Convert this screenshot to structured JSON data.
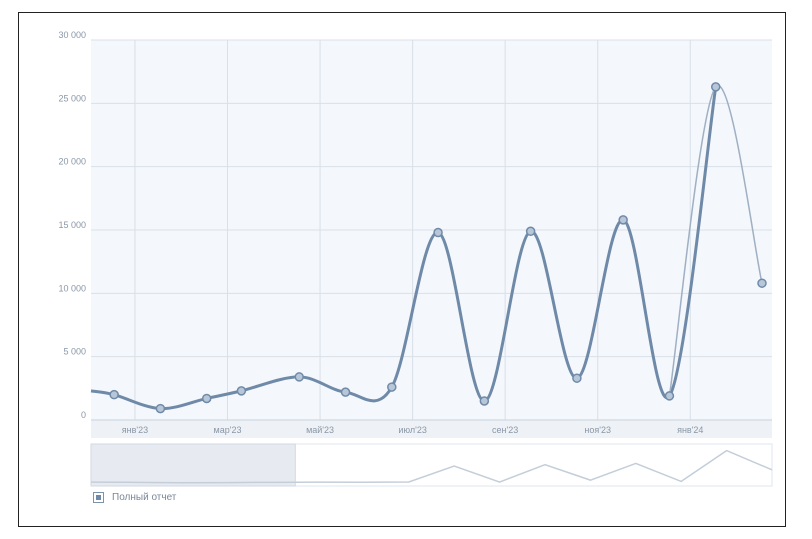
{
  "chart_data": {
    "type": "line",
    "y_ticks": [
      "30 000",
      "25 000",
      "20 000",
      "15 000",
      "10 000",
      "5 000",
      "0"
    ],
    "ylim": [
      0,
      30000
    ],
    "x_tick_labels": [
      "янв'23",
      "мар'23",
      "май'23",
      "июл'23",
      "сен'23",
      "ноя'23",
      "янв'24"
    ],
    "series": [
      {
        "points": [
          [
            0.0,
            2300
          ],
          [
            0.5,
            2000
          ],
          [
            1.5,
            900
          ],
          [
            2.5,
            1700
          ],
          [
            3.25,
            2300
          ],
          [
            4.5,
            3400
          ],
          [
            5.5,
            2200
          ],
          [
            6.5,
            2600
          ],
          [
            7.5,
            14800
          ],
          [
            8.5,
            1500
          ],
          [
            9.5,
            14900
          ],
          [
            10.5,
            3300
          ],
          [
            11.5,
            15800
          ],
          [
            12.5,
            1900
          ],
          [
            13.5,
            26300
          ],
          [
            14.5,
            10800
          ]
        ],
        "color": "#6f8aa8"
      }
    ],
    "grid": true,
    "legend": "bottom-left",
    "navigator": {
      "values": [
        1.5,
        1.3,
        1.0,
        1.1,
        1.3,
        1.5,
        1.4,
        1.6,
        14,
        1.5,
        15,
        3,
        16,
        2,
        26,
        11
      ],
      "selection": [
        0,
        0.3
      ]
    }
  },
  "legend": {
    "label": "Полный отчет"
  },
  "colors": {
    "plot_bg": "#f4f7fb",
    "grid": "#d9e0e8",
    "line": "#6f8aa8",
    "marker_fill": "#b8c7d8"
  }
}
